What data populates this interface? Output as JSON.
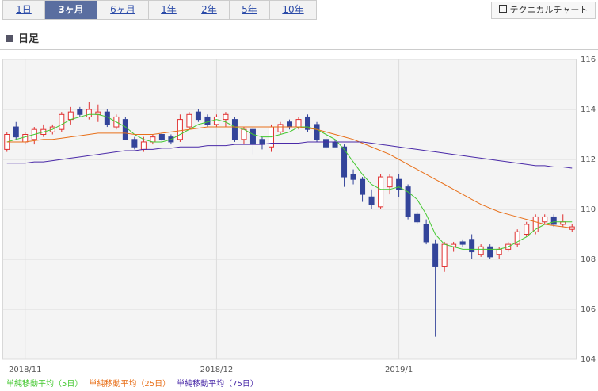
{
  "tabs": [
    "1日",
    "3ヶ月",
    "6ヶ月",
    "1年",
    "2年",
    "5年",
    "10年"
  ],
  "selected_tab": 1,
  "button": "テクニカルチャート",
  "heading": "日足",
  "chart_data": {
    "type": "candlestick",
    "categories": [
      null,
      null,
      "2018/11",
      null,
      null,
      null,
      null,
      null,
      null,
      null,
      null,
      null,
      null,
      null,
      null,
      null,
      null,
      null,
      null,
      null,
      null,
      null,
      null,
      "2018/12",
      null,
      null,
      null,
      null,
      null,
      null,
      null,
      null,
      null,
      null,
      null,
      null,
      null,
      null,
      null,
      null,
      null,
      null,
      null,
      "2019/1",
      null,
      null,
      null,
      null,
      null,
      null,
      null,
      null,
      null,
      null,
      null,
      null,
      null,
      null,
      null,
      null,
      null,
      null,
      null
    ],
    "open": [
      112.4,
      113.3,
      112.7,
      112.8,
      113.0,
      113.1,
      113.2,
      113.6,
      114.0,
      113.7,
      113.8,
      113.9,
      113.3,
      113.6,
      112.8,
      112.4,
      112.7,
      113.0,
      112.9,
      112.8,
      113.3,
      113.9,
      113.7,
      113.4,
      113.6,
      113.6,
      112.8,
      113.2,
      112.8,
      112.5,
      113.1,
      113.5,
      113.3,
      113.7,
      113.4,
      112.8,
      112.7,
      112.5,
      111.4,
      111.2,
      110.5,
      110.1,
      110.9,
      111.2,
      110.9,
      109.8,
      109.4,
      108.6,
      107.7,
      108.5,
      108.7,
      108.8,
      108.2,
      108.5,
      108.2,
      108.4,
      108.6,
      109.0,
      109.1,
      109.5,
      109.7,
      109.4,
      109.2
    ],
    "high": [
      113.1,
      113.5,
      113.1,
      113.3,
      113.4,
      113.4,
      113.9,
      114.1,
      114.1,
      114.3,
      114.2,
      114.0,
      113.8,
      113.7,
      112.9,
      112.9,
      113.0,
      113.1,
      113.0,
      113.8,
      113.9,
      114.0,
      113.8,
      113.8,
      113.9,
      113.7,
      113.3,
      113.3,
      112.9,
      113.4,
      113.5,
      113.6,
      113.7,
      113.8,
      113.5,
      113.0,
      112.8,
      112.6,
      111.6,
      111.3,
      110.8,
      111.4,
      111.4,
      111.4,
      111.0,
      109.9,
      109.6,
      108.8,
      108.7,
      108.7,
      108.8,
      109.0,
      108.6,
      108.6,
      108.5,
      108.7,
      109.2,
      109.5,
      109.8,
      109.8,
      109.8,
      109.8,
      109.4
    ],
    "low": [
      112.3,
      112.8,
      112.6,
      112.6,
      112.9,
      113.0,
      113.1,
      113.4,
      113.7,
      113.6,
      113.5,
      113.3,
      113.2,
      112.8,
      112.4,
      112.3,
      112.6,
      112.7,
      112.6,
      112.7,
      113.2,
      113.5,
      113.3,
      113.3,
      113.3,
      112.7,
      112.6,
      112.2,
      112.4,
      112.3,
      113.0,
      113.2,
      113.2,
      113.1,
      112.7,
      112.4,
      112.5,
      110.9,
      111.0,
      110.3,
      110.0,
      110.0,
      110.6,
      110.5,
      109.6,
      109.4,
      108.6,
      104.9,
      107.5,
      108.3,
      108.5,
      108.0,
      108.1,
      108.0,
      108.0,
      108.3,
      108.5,
      108.9,
      109.0,
      109.4,
      109.3,
      109.3,
      109.1
    ],
    "close": [
      113.0,
      112.9,
      113.0,
      113.2,
      113.2,
      113.3,
      113.8,
      113.9,
      113.8,
      114.0,
      113.9,
      113.4,
      113.7,
      112.8,
      112.5,
      112.7,
      112.9,
      112.8,
      112.7,
      113.6,
      113.8,
      113.6,
      113.4,
      113.7,
      113.8,
      112.8,
      113.2,
      112.6,
      112.6,
      113.3,
      113.4,
      113.3,
      113.6,
      113.2,
      112.8,
      112.5,
      112.5,
      111.3,
      111.2,
      110.6,
      110.2,
      111.3,
      111.3,
      110.8,
      109.7,
      109.5,
      108.7,
      107.7,
      108.6,
      108.6,
      108.6,
      108.3,
      108.5,
      108.1,
      108.4,
      108.6,
      109.1,
      109.4,
      109.7,
      109.7,
      109.4,
      109.5,
      109.3
    ],
    "up_color": "#e03030",
    "down_color": "#33449a",
    "series": [
      {
        "name": "単純移動平均（5日）",
        "color": "#44c830",
        "values": [
          112.7,
          112.8,
          112.9,
          113.0,
          113.1,
          113.2,
          113.4,
          113.6,
          113.7,
          113.8,
          113.8,
          113.7,
          113.5,
          113.3,
          113.0,
          112.8,
          112.7,
          112.7,
          112.8,
          113.0,
          113.2,
          113.4,
          113.5,
          113.6,
          113.5,
          113.3,
          113.2,
          113.0,
          112.9,
          112.9,
          113.0,
          113.1,
          113.3,
          113.3,
          113.2,
          113.0,
          112.8,
          112.4,
          111.9,
          111.4,
          111.0,
          110.8,
          110.8,
          110.9,
          110.7,
          110.4,
          109.8,
          109.0,
          108.6,
          108.5,
          108.4,
          108.4,
          108.4,
          108.4,
          108.4,
          108.5,
          108.7,
          108.9,
          109.2,
          109.4,
          109.5,
          109.5,
          109.5
        ]
      },
      {
        "name": "単純移動平均（25日）",
        "color": "#e8701a",
        "values": [
          112.7,
          112.7,
          112.7,
          112.75,
          112.8,
          112.8,
          112.85,
          112.9,
          112.95,
          113.0,
          113.05,
          113.05,
          113.05,
          113.05,
          113.0,
          113.0,
          113.0,
          113.05,
          113.1,
          113.15,
          113.2,
          113.25,
          113.3,
          113.3,
          113.3,
          113.3,
          113.3,
          113.3,
          113.3,
          113.3,
          113.3,
          113.3,
          113.3,
          113.25,
          113.2,
          113.1,
          113.0,
          112.9,
          112.8,
          112.65,
          112.5,
          112.35,
          112.2,
          112.0,
          111.8,
          111.6,
          111.4,
          111.2,
          111.0,
          110.8,
          110.6,
          110.4,
          110.2,
          110.05,
          109.9,
          109.8,
          109.7,
          109.6,
          109.5,
          109.4,
          109.35,
          109.3,
          109.25
        ]
      },
      {
        "name": "単純移動平均（75日）",
        "color": "#4a2aa8",
        "values": [
          111.85,
          111.85,
          111.85,
          111.9,
          111.9,
          111.95,
          112.0,
          112.05,
          112.1,
          112.15,
          112.2,
          112.25,
          112.3,
          112.35,
          112.35,
          112.4,
          112.4,
          112.45,
          112.45,
          112.5,
          112.5,
          112.5,
          112.55,
          112.55,
          112.55,
          112.6,
          112.6,
          112.6,
          112.6,
          112.65,
          112.65,
          112.65,
          112.65,
          112.7,
          112.7,
          112.7,
          112.7,
          112.7,
          112.7,
          112.7,
          112.65,
          112.6,
          112.55,
          112.5,
          112.45,
          112.4,
          112.35,
          112.3,
          112.25,
          112.2,
          112.15,
          112.1,
          112.05,
          112.0,
          111.95,
          111.9,
          111.85,
          111.8,
          111.75,
          111.75,
          111.7,
          111.7,
          111.65
        ]
      }
    ],
    "ylim": [
      104,
      116
    ],
    "yticks": [
      104,
      106,
      108,
      110,
      112,
      114,
      116
    ],
    "grid": true
  }
}
